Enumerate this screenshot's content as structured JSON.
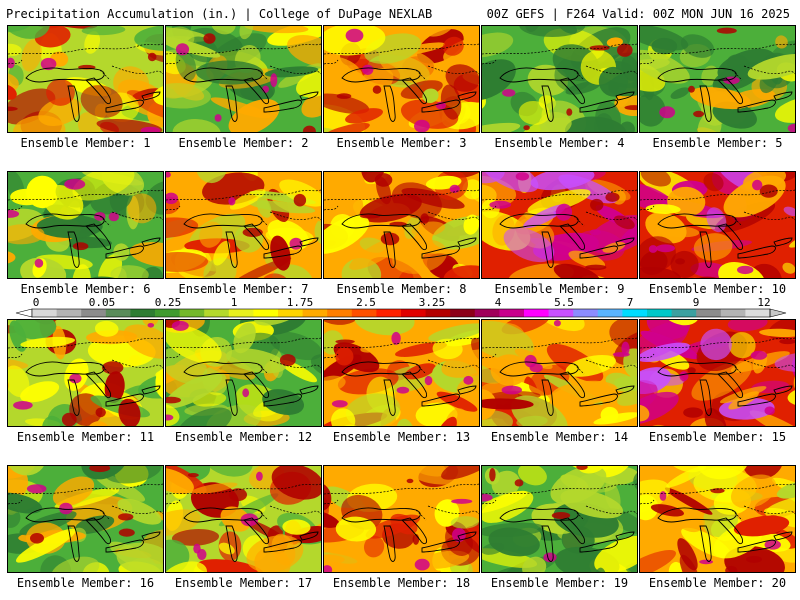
{
  "header": {
    "left_title": "Precipitation Accumulation (in.) | College of DuPage NEXLAB",
    "right_title": "00Z GEFS | F264 Valid: 00Z MON JUN 16 2025"
  },
  "members": [
    {
      "label": "Ensemble Member: 1",
      "dominant": "mixed"
    },
    {
      "label": "Ensemble Member: 2",
      "dominant": "green"
    },
    {
      "label": "Ensemble Member: 3",
      "dominant": "orange"
    },
    {
      "label": "Ensemble Member: 4",
      "dominant": "green"
    },
    {
      "label": "Ensemble Member: 5",
      "dominant": "green"
    },
    {
      "label": "Ensemble Member: 6",
      "dominant": "green"
    },
    {
      "label": "Ensemble Member: 7",
      "dominant": "orange"
    },
    {
      "label": "Ensemble Member: 8",
      "dominant": "orange"
    },
    {
      "label": "Ensemble Member: 9",
      "dominant": "red"
    },
    {
      "label": "Ensemble Member: 10",
      "dominant": "red"
    },
    {
      "label": "Ensemble Member: 11",
      "dominant": "mixed"
    },
    {
      "label": "Ensemble Member: 12",
      "dominant": "green"
    },
    {
      "label": "Ensemble Member: 13",
      "dominant": "orange"
    },
    {
      "label": "Ensemble Member: 14",
      "dominant": "orange"
    },
    {
      "label": "Ensemble Member: 15",
      "dominant": "red"
    },
    {
      "label": "Ensemble Member: 16",
      "dominant": "green"
    },
    {
      "label": "Ensemble Member: 17",
      "dominant": "mixed"
    },
    {
      "label": "Ensemble Member: 18",
      "dominant": "orange"
    },
    {
      "label": "Ensemble Member: 19",
      "dominant": "green"
    },
    {
      "label": "Ensemble Member: 20",
      "dominant": "orange"
    }
  ],
  "colorbar": {
    "tick_labels": [
      "0",
      "0.05",
      "0.25",
      "1",
      "1.75",
      "2.5",
      "3.25",
      "4",
      "5.5",
      "7",
      "9",
      "12"
    ],
    "colors": [
      "#d8d8d8",
      "#b4b4b4",
      "#8c8c8c",
      "#5a8c5a",
      "#2e7d32",
      "#3f9b2f",
      "#74b82b",
      "#b4d82c",
      "#e8f01e",
      "#ffff00",
      "#ffd400",
      "#ffaa00",
      "#ff7f00",
      "#ff5000",
      "#ff2000",
      "#e00000",
      "#b40000",
      "#8c0018",
      "#a0005a",
      "#c8008c",
      "#ff00ff",
      "#c850ff",
      "#8c8cff",
      "#5ab4ff",
      "#00dcff",
      "#00c8c8",
      "#3ca0a0",
      "#8c8c8c",
      "#b4b4b4",
      "#dcdcdc"
    ]
  },
  "palette": {
    "green_dark": "#2e7d32",
    "green": "#4caf3a",
    "yellow_green": "#b4d82c",
    "yellow": "#ffff00",
    "orange": "#ffaa00",
    "red": "#e02000",
    "dark_red": "#b00000",
    "magenta": "#d0008c",
    "purple": "#c850ff",
    "gray": "#a0a0a0"
  }
}
